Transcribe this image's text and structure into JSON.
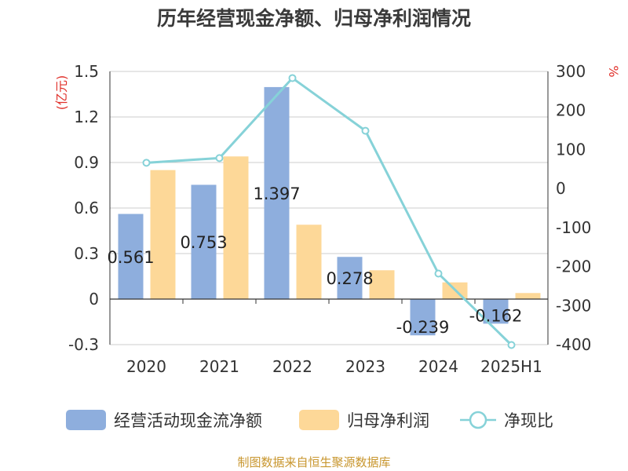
{
  "chart_data": {
    "type": "bar",
    "title": "历年经营现金净额、归母净利润情况",
    "categories": [
      "2020",
      "2021",
      "2022",
      "2023",
      "2024",
      "2025H1"
    ],
    "y_left": {
      "unit": "(亿元)",
      "min": -0.3,
      "max": 1.5,
      "ticks": [
        "-0.3",
        "0",
        "0.3",
        "0.6",
        "0.9",
        "1.2",
        "1.5"
      ]
    },
    "y_right": {
      "unit": "%",
      "min": -400,
      "max": 300,
      "ticks": [
        "-400",
        "-300",
        "-200",
        "-100",
        "0",
        "100",
        "200",
        "300"
      ]
    },
    "series": [
      {
        "name": "经营活动现金流净额",
        "kind": "bar",
        "axis": "left",
        "color": "#8eaedd",
        "values": [
          0.561,
          0.753,
          1.397,
          0.278,
          -0.239,
          -0.162
        ],
        "labels": [
          "0.561",
          "0.753",
          "1.397",
          "0.278",
          "-0.239",
          "-0.162"
        ]
      },
      {
        "name": "归母净利润",
        "kind": "bar",
        "axis": "left",
        "color": "#fdd898",
        "values": [
          0.85,
          0.94,
          0.49,
          0.19,
          0.11,
          0.04
        ]
      },
      {
        "name": "净现比",
        "kind": "line",
        "axis": "right",
        "color": "#86d2d8",
        "values": [
          66,
          78,
          283,
          148,
          -218,
          -401
        ]
      }
    ],
    "grid": true,
    "legend": "bottom"
  },
  "source_text": "制图数据来自恒生聚源数据库"
}
